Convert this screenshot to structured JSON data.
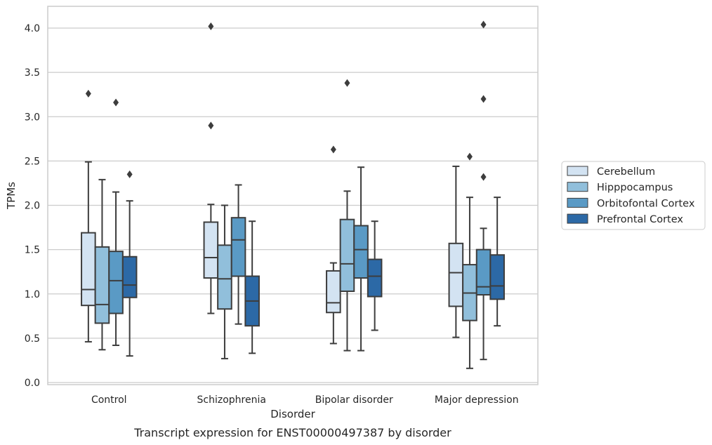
{
  "chart_data": {
    "type": "box",
    "caption": "Transcript expression for ENST00000497387 by disorder",
    "xlabel": "Disorder",
    "ylabel": "TPMs",
    "ylim": [
      -0.02,
      4.25
    ],
    "yticks": [
      "0.0",
      "0.5",
      "1.0",
      "1.5",
      "2.0",
      "2.5",
      "3.0",
      "3.5",
      "4.0"
    ],
    "grid": "horizontal",
    "legend_position": "right",
    "categories": [
      "Control",
      "Schizophrenia",
      "Bipolar disorder",
      "Major depression"
    ],
    "series": [
      {
        "name": "Cerebellum",
        "color": "#d3e3f2",
        "boxes": [
          {
            "whisker_low": 0.46,
            "q1": 0.87,
            "median": 1.05,
            "q3": 1.69,
            "whisker_high": 2.49,
            "outliers": [
              3.26
            ]
          },
          {
            "whisker_low": 0.78,
            "q1": 1.18,
            "median": 1.41,
            "q3": 1.81,
            "whisker_high": 2.01,
            "outliers": [
              2.9,
              4.02
            ]
          },
          {
            "whisker_low": 0.44,
            "q1": 0.79,
            "median": 0.9,
            "q3": 1.26,
            "whisker_high": 1.35,
            "outliers": [
              2.63
            ]
          },
          {
            "whisker_low": 0.51,
            "q1": 0.86,
            "median": 1.24,
            "q3": 1.57,
            "whisker_high": 2.44,
            "outliers": []
          }
        ]
      },
      {
        "name": "Hipppocampus",
        "color": "#91bfdb",
        "boxes": [
          {
            "whisker_low": 0.37,
            "q1": 0.67,
            "median": 0.88,
            "q3": 1.53,
            "whisker_high": 2.29,
            "outliers": []
          },
          {
            "whisker_low": 0.27,
            "q1": 0.83,
            "median": 1.17,
            "q3": 1.55,
            "whisker_high": 2.0,
            "outliers": []
          },
          {
            "whisker_low": 0.36,
            "q1": 1.03,
            "median": 1.34,
            "q3": 1.84,
            "whisker_high": 2.16,
            "outliers": [
              3.38
            ]
          },
          {
            "whisker_low": 0.16,
            "q1": 0.7,
            "median": 1.01,
            "q3": 1.33,
            "whisker_high": 2.09,
            "outliers": [
              2.55
            ]
          }
        ]
      },
      {
        "name": "Orbitofontal Cortex",
        "color": "#5a9ac5",
        "boxes": [
          {
            "whisker_low": 0.42,
            "q1": 0.78,
            "median": 1.15,
            "q3": 1.48,
            "whisker_high": 2.15,
            "outliers": [
              3.16
            ]
          },
          {
            "whisker_low": 0.66,
            "q1": 1.2,
            "median": 1.61,
            "q3": 1.86,
            "whisker_high": 2.23,
            "outliers": []
          },
          {
            "whisker_low": 0.36,
            "q1": 1.18,
            "median": 1.5,
            "q3": 1.77,
            "whisker_high": 2.43,
            "outliers": []
          },
          {
            "whisker_low": 0.26,
            "q1": 0.99,
            "median": 1.08,
            "q3": 1.5,
            "whisker_high": 1.74,
            "outliers": [
              2.32,
              3.2,
              4.04
            ]
          }
        ]
      },
      {
        "name": "Prefrontal Cortex",
        "color": "#2c69a6",
        "boxes": [
          {
            "whisker_low": 0.3,
            "q1": 0.96,
            "median": 1.1,
            "q3": 1.42,
            "whisker_high": 2.05,
            "outliers": [
              2.35
            ]
          },
          {
            "whisker_low": 0.33,
            "q1": 0.64,
            "median": 0.92,
            "q3": 1.2,
            "whisker_high": 1.82,
            "outliers": []
          },
          {
            "whisker_low": 0.59,
            "q1": 0.97,
            "median": 1.2,
            "q3": 1.39,
            "whisker_high": 1.82,
            "outliers": []
          },
          {
            "whisker_low": 0.64,
            "q1": 0.94,
            "median": 1.09,
            "q3": 1.44,
            "whisker_high": 2.09,
            "outliers": []
          }
        ]
      }
    ]
  }
}
